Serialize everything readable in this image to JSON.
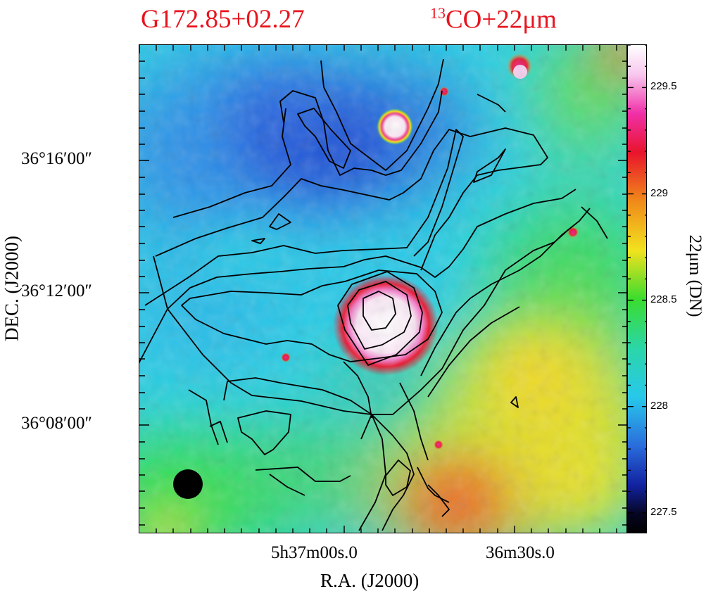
{
  "title": {
    "source_name": "G172.85+02.27",
    "overlay": "13CO+22μm",
    "overlay_sup": "13",
    "overlay_rest": "CO+22μm"
  },
  "axes": {
    "x_title": "R.A. (J2000)",
    "y_title": "DEC. (J2000)",
    "x_ticks": [
      "5h37m00s.0",
      "36m30s.0"
    ],
    "y_ticks": [
      "36°16′00″",
      "36°12′00″",
      "36°08′00″"
    ]
  },
  "colorbar": {
    "title": "22μm (DN)",
    "ticks": [
      229.5,
      229,
      228.5,
      228,
      227.5
    ],
    "tick_labels": [
      "229.5",
      "229",
      "228.5",
      "228",
      "227.5"
    ],
    "range": [
      227.4,
      229.7
    ]
  },
  "colors": {
    "title": "#e8141e",
    "contour": "#000000"
  }
}
